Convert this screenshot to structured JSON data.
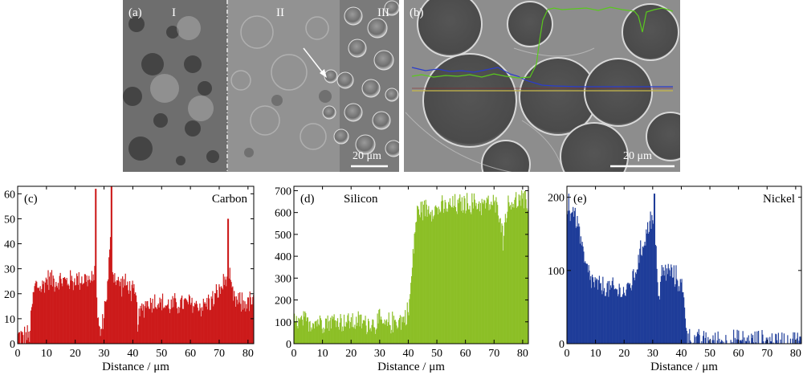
{
  "panels": {
    "a": {
      "label": "(a)",
      "regions": [
        "I",
        "II",
        "III"
      ],
      "scalebar": "20 μm"
    },
    "b": {
      "label": "(b)",
      "scalebar": "20 μm"
    }
  },
  "chart_data": [
    {
      "type": "bar",
      "panel_label": "(c)",
      "title": "Carbon",
      "xlabel": "Distance / μm",
      "ylabel": "",
      "xlim": [
        0,
        82
      ],
      "ylim": [
        0,
        63
      ],
      "xticks": [
        0,
        10,
        20,
        30,
        40,
        50,
        60,
        70,
        80
      ],
      "yticks": [
        0,
        10,
        20,
        30,
        40,
        50,
        60
      ],
      "color": "#cc1a1a",
      "profile": [
        [
          0,
          3
        ],
        [
          4,
          3
        ],
        [
          5,
          17
        ],
        [
          6,
          24
        ],
        [
          8,
          22
        ],
        [
          10,
          26
        ],
        [
          14,
          25
        ],
        [
          18,
          25
        ],
        [
          22,
          26
        ],
        [
          24,
          26
        ],
        [
          26,
          24
        ],
        [
          27,
          38
        ],
        [
          27.5,
          14
        ],
        [
          28,
          5
        ],
        [
          29,
          5
        ],
        [
          30,
          14
        ],
        [
          31,
          22
        ],
        [
          32,
          40
        ],
        [
          33,
          28
        ],
        [
          35,
          24
        ],
        [
          37,
          24
        ],
        [
          39,
          22
        ],
        [
          41,
          18
        ],
        [
          41.5,
          9
        ],
        [
          42.5,
          12
        ],
        [
          44,
          16
        ],
        [
          48,
          17
        ],
        [
          52,
          15
        ],
        [
          56,
          16
        ],
        [
          60,
          16
        ],
        [
          64,
          15
        ],
        [
          68,
          18
        ],
        [
          71,
          23
        ],
        [
          73,
          28
        ],
        [
          75,
          17
        ],
        [
          78,
          16
        ],
        [
          82,
          17
        ]
      ],
      "peaks": [
        [
          27,
          62
        ],
        [
          32.5,
          63
        ],
        [
          73,
          50
        ]
      ]
    },
    {
      "type": "bar",
      "panel_label": "(d)",
      "title": "Silicon",
      "xlabel": "Distance / μm",
      "ylabel": "",
      "xlim": [
        0,
        82
      ],
      "ylim": [
        0,
        720
      ],
      "xticks": [
        0,
        10,
        20,
        30,
        40,
        50,
        60,
        70,
        80
      ],
      "yticks": [
        0,
        100,
        200,
        300,
        400,
        500,
        600,
        700
      ],
      "color": "#8cbf26",
      "profile": [
        [
          0,
          95
        ],
        [
          5,
          100
        ],
        [
          10,
          105
        ],
        [
          15,
          105
        ],
        [
          20,
          100
        ],
        [
          24,
          98
        ],
        [
          27,
          92
        ],
        [
          30,
          100
        ],
        [
          32,
          78
        ],
        [
          34,
          100
        ],
        [
          38,
          110
        ],
        [
          40,
          150
        ],
        [
          41,
          300
        ],
        [
          42,
          500
        ],
        [
          43,
          600
        ],
        [
          45,
          620
        ],
        [
          50,
          615
        ],
        [
          55,
          630
        ],
        [
          60,
          640
        ],
        [
          65,
          640
        ],
        [
          70,
          635
        ],
        [
          72,
          600
        ],
        [
          73,
          470
        ],
        [
          74,
          610
        ],
        [
          76,
          650
        ],
        [
          80,
          650
        ],
        [
          82,
          640
        ]
      ],
      "peaks": []
    },
    {
      "type": "bar",
      "panel_label": "(e)",
      "title": "Nickel",
      "xlabel": "Distance / μm",
      "ylabel": "",
      "xlim": [
        0,
        82
      ],
      "ylim": [
        0,
        215
      ],
      "xticks": [
        0,
        10,
        20,
        30,
        40,
        50,
        60,
        70,
        80
      ],
      "yticks": [
        0,
        100,
        200
      ],
      "color": "#1f3d99",
      "profile": [
        [
          0,
          178
        ],
        [
          2,
          182
        ],
        [
          4,
          160
        ],
        [
          6,
          110
        ],
        [
          8,
          90
        ],
        [
          10,
          80
        ],
        [
          14,
          75
        ],
        [
          18,
          72
        ],
        [
          20,
          70
        ],
        [
          22,
          80
        ],
        [
          24,
          100
        ],
        [
          26,
          130
        ],
        [
          28,
          155
        ],
        [
          29,
          175
        ],
        [
          30,
          165
        ],
        [
          31,
          130
        ],
        [
          32,
          60
        ],
        [
          33,
          95
        ],
        [
          35,
          100
        ],
        [
          38,
          90
        ],
        [
          40,
          80
        ],
        [
          41,
          50
        ],
        [
          42,
          10
        ],
        [
          43,
          4
        ],
        [
          50,
          3
        ],
        [
          60,
          3
        ],
        [
          70,
          3
        ],
        [
          82,
          3
        ]
      ],
      "peaks": [
        [
          0.5,
          205
        ],
        [
          30.5,
          205
        ]
      ]
    }
  ]
}
